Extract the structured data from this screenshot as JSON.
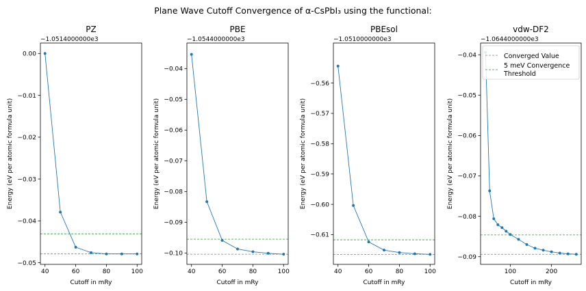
{
  "suptitle": "Plane Wave Cutoff Convergence of α-CsPbI₃ using the functional:",
  "colors": {
    "series": "#1f77b4",
    "converged": "#808080",
    "threshold": "#2ca02c"
  },
  "legend": {
    "placement": "top-right",
    "panel": 3,
    "converged_label": "Converged Value",
    "threshold_label_line1": "5 meV Convergence",
    "threshold_label_line2": " Threshold"
  },
  "chart_data": [
    {
      "type": "line",
      "title": "PZ",
      "offset_label": "−1.0514000000e3",
      "xlabel": "Cutoff in mRy",
      "ylabel": "Energy (eV per atomic formula unit)",
      "xlim": [
        37.0,
        103.0
      ],
      "ylim": [
        -0.0504,
        0.0025
      ],
      "xticks": [
        40,
        60,
        80,
        100
      ],
      "xtick_labels": [
        "40",
        "60",
        "80",
        "100"
      ],
      "yticks": [
        0.0,
        -0.01,
        -0.02,
        -0.03,
        -0.04,
        -0.05
      ],
      "ytick_labels": [
        "0.00",
        "−0.01",
        "−0.02",
        "−0.03",
        "−0.04",
        "−0.05"
      ],
      "x": [
        40,
        50,
        60,
        70,
        80,
        90,
        100
      ],
      "y": [
        0.0,
        -0.0379,
        -0.0463,
        -0.0476,
        -0.0479,
        -0.0479,
        -0.0479
      ],
      "converged": -0.0479,
      "threshold": -0.0431,
      "grid": false
    },
    {
      "type": "line",
      "title": "PBE",
      "offset_label": "−1.0544000000e3",
      "xlabel": "Cutoff in mRy",
      "ylabel": "Energy (eV per atomic formula unit)",
      "xlim": [
        37.0,
        103.0
      ],
      "ylim": [
        -0.1037,
        -0.0317
      ],
      "xticks": [
        40,
        60,
        80,
        100
      ],
      "xtick_labels": [
        "40",
        "60",
        "80",
        "100"
      ],
      "yticks": [
        -0.04,
        -0.05,
        -0.06,
        -0.07,
        -0.08,
        -0.09,
        -0.1
      ],
      "ytick_labels": [
        "−0.04",
        "−0.05",
        "−0.06",
        "−0.07",
        "−0.08",
        "−0.09",
        "−0.10"
      ],
      "x": [
        40,
        50,
        60,
        70,
        80,
        90,
        100
      ],
      "y": [
        -0.0354,
        -0.0833,
        -0.0959,
        -0.0987,
        -0.0996,
        -0.1001,
        -0.1004
      ],
      "converged": -0.1004,
      "threshold": -0.0955,
      "grid": false
    },
    {
      "type": "line",
      "title": "PBEsol",
      "offset_label": "−1.0510000000e3",
      "xlabel": "Cutoff in mRy",
      "ylabel": "Energy (eV per atomic formula unit)",
      "xlim": [
        37.0,
        103.0
      ],
      "ylim": [
        -0.6198,
        -0.5468
      ],
      "xticks": [
        40,
        60,
        80,
        100
      ],
      "xtick_labels": [
        "40",
        "60",
        "80",
        "100"
      ],
      "yticks": [
        -0.56,
        -0.57,
        -0.58,
        -0.59,
        -0.6,
        -0.61
      ],
      "ytick_labels": [
        "−0.56",
        "−0.57",
        "−0.58",
        "−0.59",
        "−0.60",
        "−0.61"
      ],
      "x": [
        40,
        50,
        60,
        70,
        80,
        90,
        100
      ],
      "y": [
        -0.5544,
        -0.6004,
        -0.6124,
        -0.6151,
        -0.6159,
        -0.6163,
        -0.6165
      ],
      "converged": -0.6165,
      "threshold": -0.6117,
      "grid": false
    },
    {
      "type": "line",
      "title": "vdw-DF2",
      "offset_label": "−1.0644000000e3",
      "xlabel": "Cutoff in mRy",
      "ylabel": "Energy (eV per atomic formula unit)",
      "xlim": [
        28.0,
        272.0
      ],
      "ylim": [
        -0.0919,
        -0.0371
      ],
      "xticks": [
        100,
        200
      ],
      "xtick_labels": [
        "100",
        "200"
      ],
      "yticks": [
        -0.04,
        -0.05,
        -0.06,
        -0.07,
        -0.08,
        -0.09
      ],
      "ytick_labels": [
        "−0.04",
        "−0.05",
        "−0.06",
        "−0.07",
        "−0.08",
        "−0.09"
      ],
      "x": [
        40,
        50,
        60,
        70,
        80,
        90,
        100,
        120,
        140,
        160,
        180,
        200,
        220,
        240,
        260
      ],
      "y": [
        -0.0394,
        -0.0737,
        -0.0806,
        -0.0821,
        -0.0828,
        -0.0837,
        -0.0845,
        -0.0857,
        -0.087,
        -0.0879,
        -0.0884,
        -0.0888,
        -0.0891,
        -0.0893,
        -0.0894
      ],
      "converged": -0.0894,
      "threshold": -0.0846,
      "grid": false
    }
  ]
}
